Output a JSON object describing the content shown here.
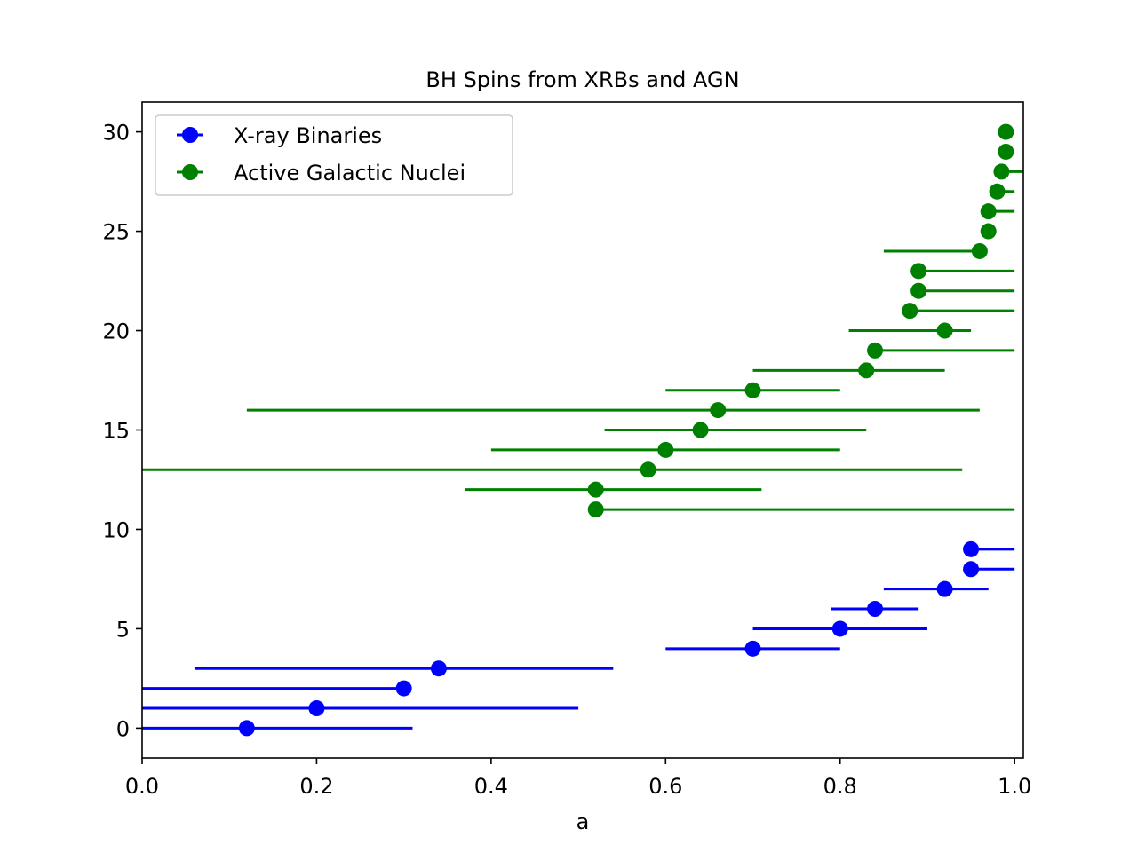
{
  "chart_data": {
    "type": "scatter",
    "title": "BH Spins from XRBs and AGN",
    "xlabel": "a",
    "ylabel": "",
    "xlim": [
      0.0,
      1.01
    ],
    "ylim": [
      -1.5,
      31.5
    ],
    "xticks": [
      "0.0",
      "0.2",
      "0.4",
      "0.6",
      "0.8",
      "1.0"
    ],
    "yticks": [
      "0",
      "5",
      "10",
      "15",
      "20",
      "25",
      "30"
    ],
    "legend": {
      "location": "upper left"
    },
    "grid": false,
    "series": [
      {
        "name": "X-ray Binaries",
        "color": "#0000ff",
        "marker": "circle",
        "points": [
          {
            "y": 0,
            "x": 0.12,
            "xmin": 0.0,
            "xmax": 0.31
          },
          {
            "y": 1,
            "x": 0.2,
            "xmin": 0.0,
            "xmax": 0.5
          },
          {
            "y": 2,
            "x": 0.3,
            "xmin": 0.0,
            "xmax": 0.3
          },
          {
            "y": 3,
            "x": 0.34,
            "xmin": 0.06,
            "xmax": 0.54
          },
          {
            "y": 4,
            "x": 0.7,
            "xmin": 0.6,
            "xmax": 0.8
          },
          {
            "y": 5,
            "x": 0.8,
            "xmin": 0.7,
            "xmax": 0.9
          },
          {
            "y": 6,
            "x": 0.84,
            "xmin": 0.79,
            "xmax": 0.89
          },
          {
            "y": 7,
            "x": 0.92,
            "xmin": 0.85,
            "xmax": 0.97
          },
          {
            "y": 8,
            "x": 0.95,
            "xmin": 0.95,
            "xmax": 1.0
          },
          {
            "y": 9,
            "x": 0.95,
            "xmin": 0.95,
            "xmax": 1.0
          }
        ]
      },
      {
        "name": "Active Galactic Nuclei",
        "color": "#008000",
        "marker": "circle",
        "points": [
          {
            "y": 11,
            "x": 0.52,
            "xmin": 0.52,
            "xmax": 1.0
          },
          {
            "y": 12,
            "x": 0.52,
            "xmin": 0.37,
            "xmax": 0.71
          },
          {
            "y": 13,
            "x": 0.58,
            "xmin": 0.0,
            "xmax": 0.94
          },
          {
            "y": 14,
            "x": 0.6,
            "xmin": 0.4,
            "xmax": 0.8
          },
          {
            "y": 15,
            "x": 0.64,
            "xmin": 0.53,
            "xmax": 0.83
          },
          {
            "y": 16,
            "x": 0.66,
            "xmin": 0.12,
            "xmax": 0.96
          },
          {
            "y": 17,
            "x": 0.7,
            "xmin": 0.6,
            "xmax": 0.8
          },
          {
            "y": 18,
            "x": 0.83,
            "xmin": 0.7,
            "xmax": 0.92
          },
          {
            "y": 19,
            "x": 0.84,
            "xmin": 0.84,
            "xmax": 1.0
          },
          {
            "y": 20,
            "x": 0.92,
            "xmin": 0.81,
            "xmax": 0.95
          },
          {
            "y": 21,
            "x": 0.88,
            "xmin": 0.88,
            "xmax": 1.0
          },
          {
            "y": 22,
            "x": 0.89,
            "xmin": 0.89,
            "xmax": 1.0
          },
          {
            "y": 23,
            "x": 0.89,
            "xmin": 0.89,
            "xmax": 1.0
          },
          {
            "y": 24,
            "x": 0.96,
            "xmin": 0.85,
            "xmax": 0.96
          },
          {
            "y": 25,
            "x": 0.97,
            "xmin": 0.97,
            "xmax": 0.97
          },
          {
            "y": 26,
            "x": 0.97,
            "xmin": 0.97,
            "xmax": 1.0
          },
          {
            "y": 27,
            "x": 0.98,
            "xmin": 0.98,
            "xmax": 1.0
          },
          {
            "y": 28,
            "x": 0.985,
            "xmin": 0.985,
            "xmax": 1.01
          },
          {
            "y": 29,
            "x": 0.99,
            "xmin": 0.99,
            "xmax": 0.99
          },
          {
            "y": 30,
            "x": 0.99,
            "xmin": 0.99,
            "xmax": 0.99
          }
        ]
      }
    ]
  }
}
